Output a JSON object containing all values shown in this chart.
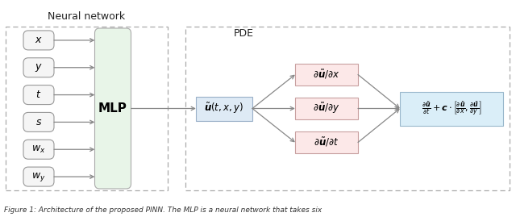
{
  "fig_width": 6.4,
  "fig_height": 2.74,
  "dpi": 100,
  "bg_color": "#ffffff",
  "input_labels": [
    "$x$",
    "$y$",
    "$t$",
    "$s$",
    "$w_x$",
    "$w_y$"
  ],
  "input_box_face": "#f5f5f5",
  "input_box_edge": "#999999",
  "mlp_face": "#e8f5e8",
  "mlp_edge": "#aaaaaa",
  "u_box_face": "#deeaf5",
  "u_box_edge": "#9ab0c8",
  "deriv_box_face": "#fce8e8",
  "deriv_box_edge": "#c8a0a0",
  "pde_box_face": "#daeef8",
  "pde_box_edge": "#9ab8cc",
  "nn_dash_edge": "#aaaaaa",
  "pde_dash_edge": "#aaaaaa",
  "arrow_color": "#888888",
  "nn_label": "Neural network",
  "pde_label": "PDE",
  "mlp_label": "MLP",
  "u_label": "$\\tilde{\\boldsymbol{u}}(t,x,y)$",
  "deriv_labels": [
    "$\\partial\\tilde{\\boldsymbol{u}}/\\partial x$",
    "$\\partial\\tilde{\\boldsymbol{u}}/\\partial y$",
    "$\\partial\\tilde{\\boldsymbol{u}}/\\partial t$"
  ],
  "caption": "Figure 1: Architecture of the proposed PINN. The MLP is a neural network that takes six"
}
